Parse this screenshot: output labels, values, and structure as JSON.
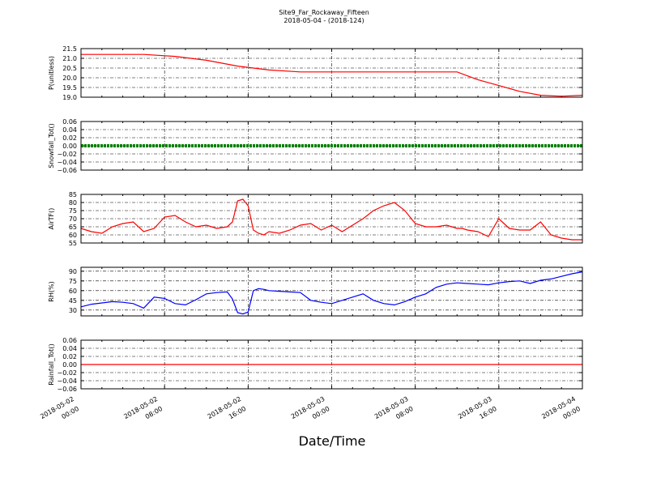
{
  "figure": {
    "title": "Site9_Far_Rockaway_Fifteen",
    "subtitle": "2018-05-04 - (2018-124)",
    "xlabel": "Date/Time",
    "x_ticks": [
      {
        "value": "2018-05-02 00:00",
        "line1": "2018-05-02",
        "line2": "00:00"
      },
      {
        "value": "2018-05-02 08:00",
        "line1": "2018-05-02",
        "line2": "08:00"
      },
      {
        "value": "2018-05-02 16:00",
        "line1": "2018-05-02",
        "line2": "16:00"
      },
      {
        "value": "2018-05-03 00:00",
        "line1": "2018-05-03",
        "line2": "00:00"
      },
      {
        "value": "2018-05-03 08:00",
        "line1": "2018-05-03",
        "line2": "08:00"
      },
      {
        "value": "2018-05-03 16:00",
        "line1": "2018-05-03",
        "line2": "16:00"
      },
      {
        "value": "2018-05-04 00:00",
        "line1": "2018-05-04",
        "line2": "00:00"
      }
    ]
  },
  "chart_data": [
    {
      "type": "line",
      "ylabel": "P(unitless)",
      "ylim": [
        19.0,
        21.5
      ],
      "yticks": [
        "21.5",
        "21.0",
        "20.5",
        "20.0",
        "19.5",
        "19.0"
      ],
      "grid": true,
      "color": "#ff0000",
      "series": [
        {
          "x_hours": [
            0,
            6,
            9,
            12,
            15,
            18,
            21,
            24,
            27,
            30,
            33,
            36,
            38,
            40,
            42,
            44,
            46,
            48
          ],
          "values": [
            21.2,
            21.2,
            21.1,
            20.9,
            20.6,
            20.4,
            20.3,
            20.3,
            20.3,
            20.3,
            20.3,
            20.3,
            19.9,
            19.6,
            19.3,
            19.1,
            19.05,
            19.1
          ]
        }
      ]
    },
    {
      "type": "line",
      "ylabel": "Snowfall_Tot()",
      "ylim": [
        -0.06,
        0.06
      ],
      "yticks": [
        "0.06",
        "0.04",
        "0.02",
        "0.00",
        "−0.02",
        "−0.04",
        "−0.06"
      ],
      "grid": true,
      "color": "#008000",
      "series": [
        {
          "x_hours": [
            0,
            48
          ],
          "values": [
            0.0,
            0.0
          ]
        }
      ]
    },
    {
      "type": "line",
      "ylabel": "AirTF()",
      "ylim": [
        55,
        85
      ],
      "yticks": [
        "85",
        "80",
        "75",
        "70",
        "65",
        "60",
        "55"
      ],
      "grid": true,
      "color": "#ff0000",
      "series": [
        {
          "x_hours": [
            0,
            1,
            2,
            3,
            4,
            5,
            6,
            7,
            8,
            9,
            10,
            11,
            12,
            13,
            14,
            14.5,
            15,
            15.5,
            16,
            16.5,
            17,
            17.5,
            18,
            19,
            20,
            21,
            22,
            23,
            24,
            25,
            26,
            27,
            28,
            29,
            30,
            31,
            32,
            33,
            34,
            35,
            36,
            36.5,
            37,
            38,
            39,
            40,
            41,
            42,
            43,
            44,
            45,
            46,
            47,
            48
          ],
          "values": [
            64,
            62,
            61,
            65,
            67,
            68,
            62,
            64,
            71,
            72,
            68,
            65,
            66,
            64,
            65,
            68,
            81,
            82,
            78,
            63,
            61,
            60,
            62,
            61,
            63,
            66,
            67,
            63,
            66,
            62,
            66,
            70,
            75,
            78,
            80,
            75,
            67,
            65,
            65,
            66,
            64,
            64,
            63,
            62,
            59,
            70,
            64,
            63,
            63,
            68,
            60,
            58,
            57,
            57
          ]
        }
      ]
    },
    {
      "type": "line",
      "ylabel": "RH(%)",
      "ylim": [
        21,
        96
      ],
      "yticks": [
        "90",
        "75",
        "60",
        "45",
        "30"
      ],
      "grid": true,
      "color": "#0000ff",
      "series": [
        {
          "x_hours": [
            0,
            1,
            2,
            3,
            4,
            5,
            6,
            7,
            8,
            9,
            10,
            11,
            12,
            13,
            14,
            14.5,
            15,
            15.5,
            16,
            16.5,
            17,
            17.5,
            18,
            19,
            20,
            21,
            22,
            23,
            24,
            25,
            26,
            27,
            28,
            29,
            30,
            31,
            32,
            33,
            34,
            35,
            36,
            37,
            38,
            39,
            40,
            41,
            42,
            43,
            44,
            45,
            46,
            47,
            48
          ],
          "values": [
            35,
            39,
            41,
            43,
            42,
            40,
            33,
            50,
            48,
            40,
            38,
            46,
            55,
            57,
            58,
            47,
            26,
            24,
            27,
            60,
            63,
            62,
            60,
            59,
            58,
            57,
            45,
            42,
            40,
            45,
            50,
            55,
            45,
            40,
            38,
            43,
            50,
            55,
            65,
            70,
            72,
            71,
            70,
            69,
            72,
            74,
            75,
            71,
            76,
            78,
            82,
            86,
            89
          ]
        }
      ]
    },
    {
      "type": "line",
      "ylabel": "Rainfall_Tot()",
      "ylim": [
        -0.06,
        0.06
      ],
      "yticks": [
        "0.06",
        "0.04",
        "0.02",
        "0.00",
        "−0.02",
        "−0.04",
        "−0.06"
      ],
      "grid": true,
      "color": "#ff0000",
      "series": [
        {
          "x_hours": [
            0,
            48
          ],
          "values": [
            0.0,
            0.0
          ]
        }
      ]
    }
  ]
}
